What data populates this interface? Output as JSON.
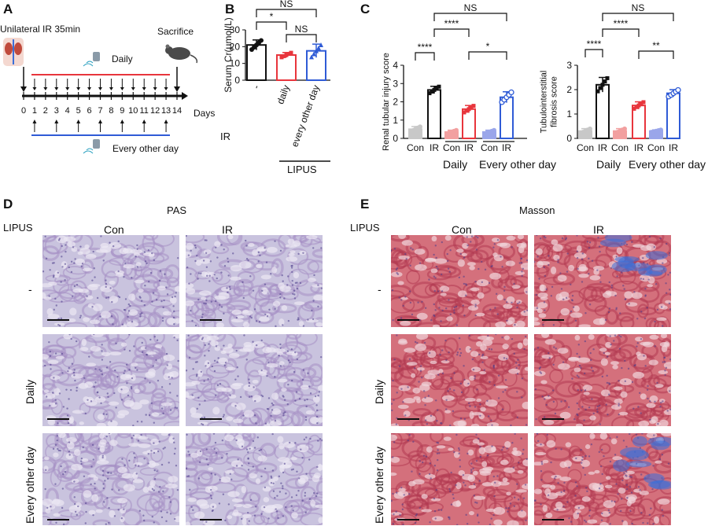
{
  "panels": {
    "a": {
      "letter": "A",
      "ir_label": "Unilateral IR  35min",
      "sacrifice_label": "Sacrifice",
      "daily_label": "Daily",
      "every_other_label": "Every other day",
      "days_label": "Days",
      "day_ticks": [
        "0",
        "1",
        "2",
        "3",
        "4",
        "5",
        "6",
        "7",
        "8",
        "9",
        "10",
        "11",
        "12",
        "13",
        "14"
      ]
    },
    "b": {
      "letter": "B",
      "ir_row_label": "IR",
      "lipus_label": "LIPUS"
    },
    "c": {
      "letter": "C",
      "group_daily": "Daily",
      "group_every_other": "Every other day"
    },
    "d": {
      "letter": "D",
      "stain": "PAS",
      "lipus_label": "LIPUS",
      "col_con": "Con",
      "col_ir": "IR",
      "row_none": "-",
      "row_daily": "Daily",
      "row_every_other": "Every other day"
    },
    "e": {
      "letter": "E",
      "stain": "Masson",
      "lipus_label": "LIPUS",
      "col_con": "Con",
      "col_ir": "IR",
      "row_none": "-",
      "row_daily": "Daily",
      "row_every_other": "Every other day"
    }
  },
  "colors": {
    "daily_line": "#e8353c",
    "every_other_line": "#2f5bd6",
    "b_bar1": "#111111",
    "b_bar2": "#e8353c",
    "b_bar3": "#2f5bd6",
    "c_con": "#c8c8c8",
    "c_ir": "#111111",
    "c_daily_con": "#f2a0a0",
    "c_daily_ir": "#e8353c",
    "c_eod_con": "#9aa6ea",
    "c_eod_ir": "#2f5bd6",
    "pas_bg": "#c9c3de",
    "masson_bg": "#d4707c"
  },
  "chart_data": [
    {
      "panel": "B",
      "type": "bar",
      "ylabel": "Serum Cr(μmol/L)",
      "categories": [
        "-",
        "daily",
        "every other day"
      ],
      "values": [
        21,
        15,
        17.5
      ],
      "errors": [
        3,
        1.5,
        4
      ],
      "ylim": [
        0,
        30
      ],
      "yticks": [
        0,
        10,
        20,
        30
      ],
      "significance": [
        {
          "from": 0,
          "to": 1,
          "label": "*"
        },
        {
          "from": 1,
          "to": 2,
          "label": "NS"
        },
        {
          "from": 0,
          "to": 2,
          "label": "NS"
        }
      ]
    },
    {
      "panel": "C-left",
      "type": "bar",
      "ylabel": "Renal tubular injury score",
      "categories": [
        "Con",
        "IR",
        "Con",
        "IR",
        "Con",
        "IR"
      ],
      "values": [
        0.5,
        2.65,
        0.35,
        1.6,
        0.35,
        2.25
      ],
      "errors": [
        0.15,
        0.2,
        0.1,
        0.2,
        0.1,
        0.3
      ],
      "ylim": [
        0,
        4
      ],
      "yticks": [
        0,
        1,
        2,
        3,
        4
      ],
      "significance": [
        {
          "from": 0,
          "to": 1,
          "label": "****"
        },
        {
          "from": 1,
          "to": 3,
          "label": "****"
        },
        {
          "from": 3,
          "to": 5,
          "label": "*"
        },
        {
          "from": 1,
          "to": 5,
          "label": "NS"
        }
      ]
    },
    {
      "panel": "C-right",
      "type": "bar",
      "ylabel": "Tubulointerstitial fibrosis score",
      "categories": [
        "Con",
        "IR",
        "Con",
        "IR",
        "Con",
        "IR"
      ],
      "values": [
        0.3,
        2.2,
        0.3,
        1.35,
        0.3,
        1.85
      ],
      "errors": [
        0.1,
        0.3,
        0.1,
        0.15,
        0.05,
        0.15
      ],
      "ylim": [
        0,
        3
      ],
      "yticks": [
        0,
        1,
        2,
        3
      ],
      "significance": [
        {
          "from": 0,
          "to": 1,
          "label": "****"
        },
        {
          "from": 1,
          "to": 3,
          "label": "****"
        },
        {
          "from": 3,
          "to": 5,
          "label": "**"
        },
        {
          "from": 1,
          "to": 5,
          "label": "NS"
        }
      ]
    }
  ]
}
